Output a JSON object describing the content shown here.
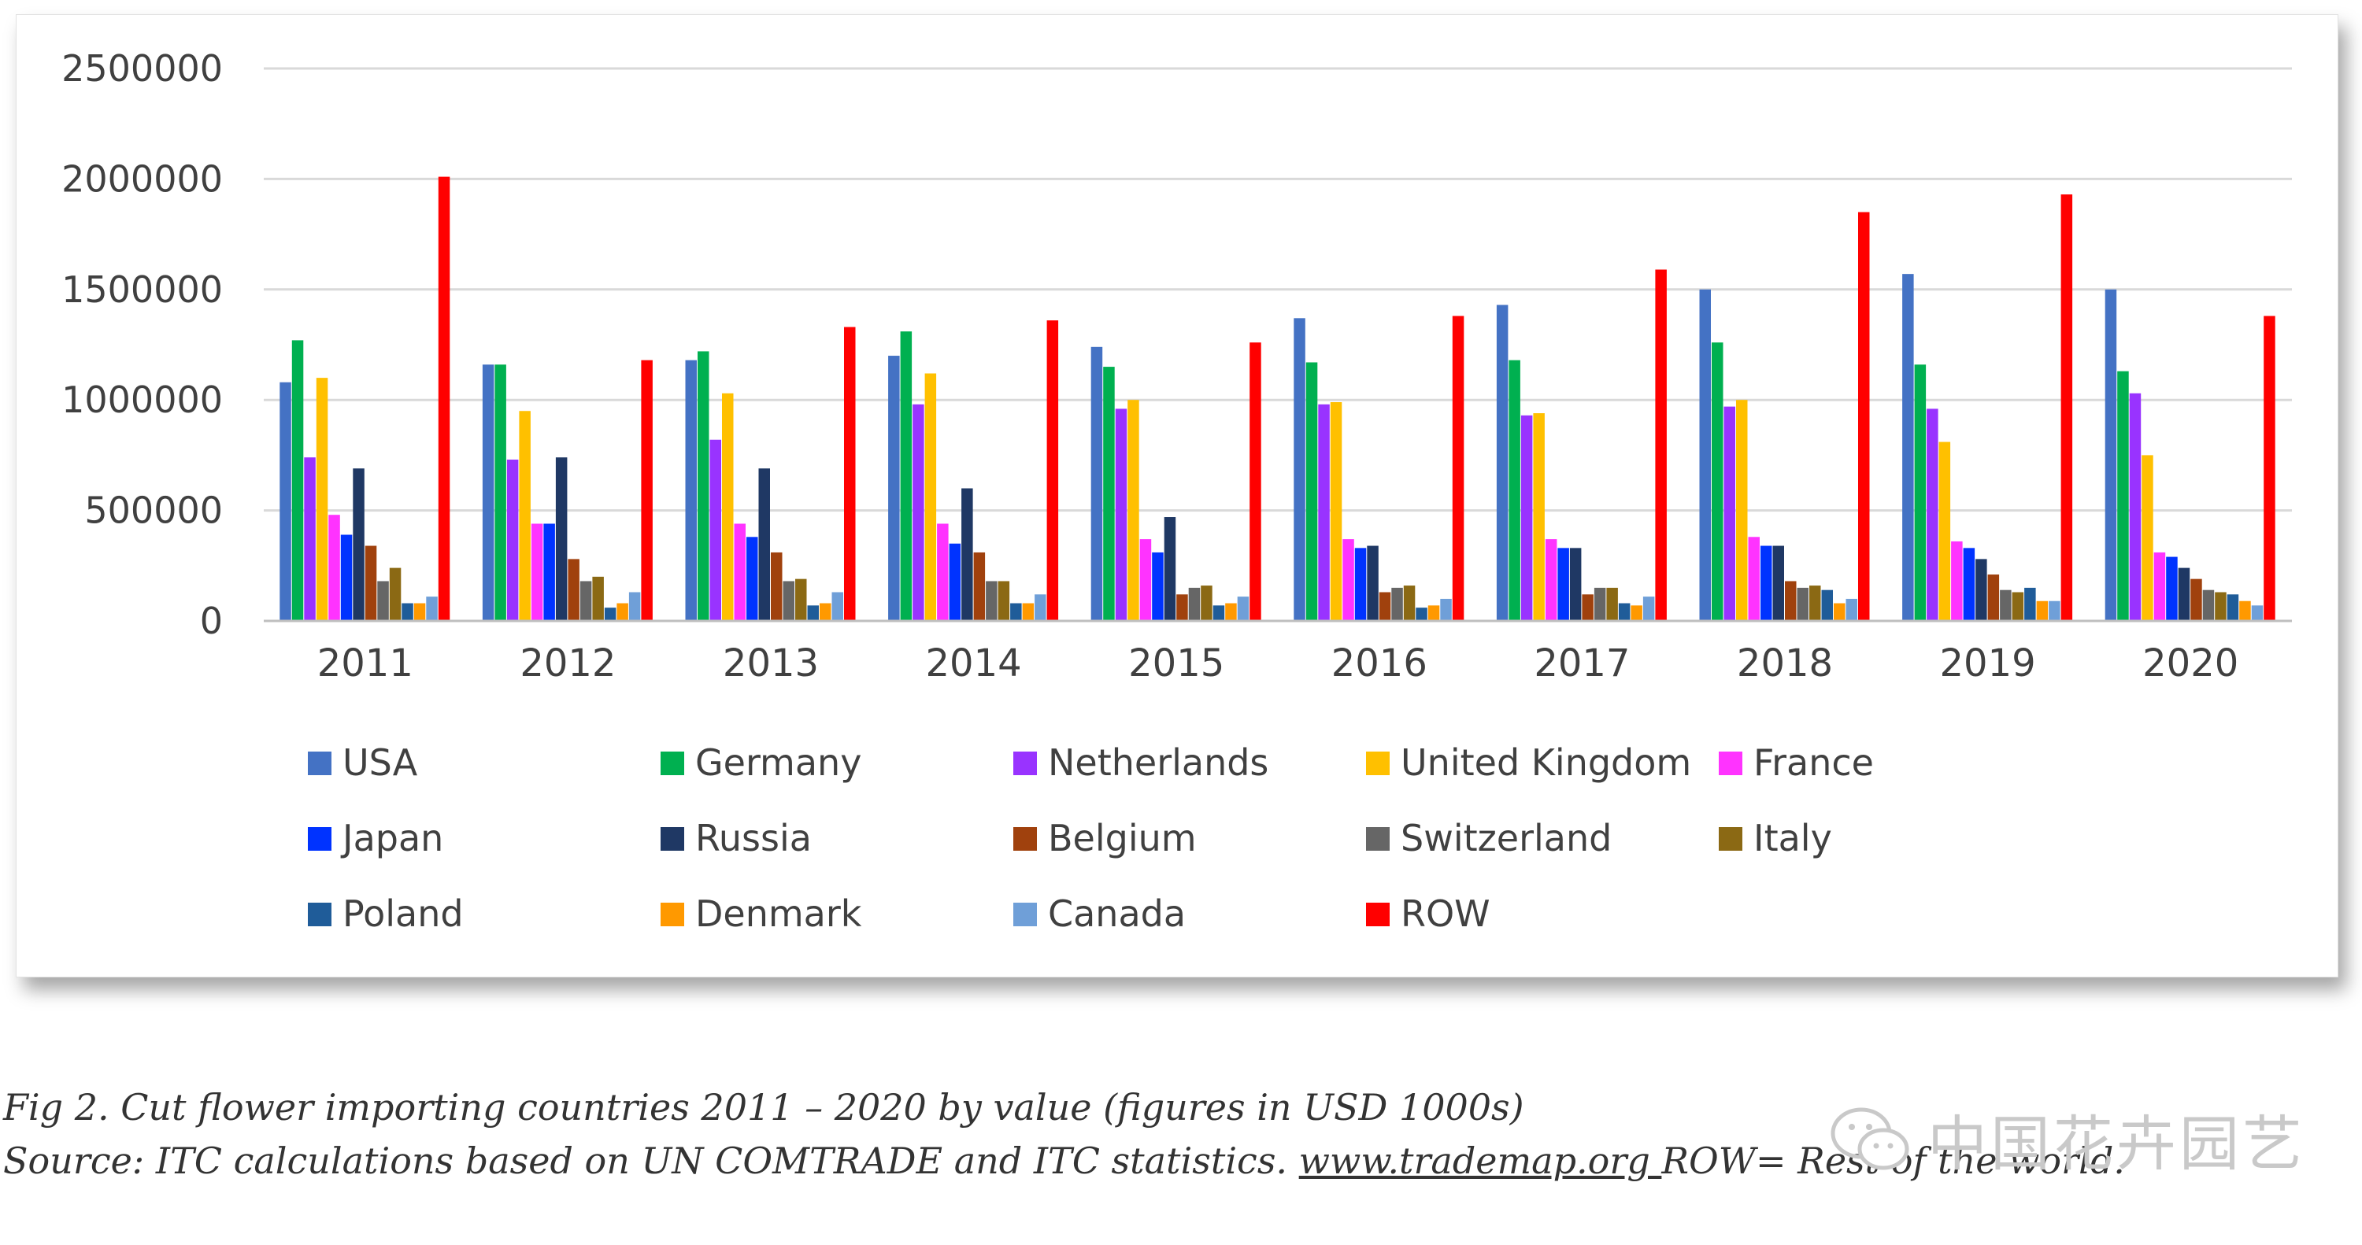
{
  "chart_data": {
    "type": "bar",
    "categories": [
      "2011",
      "2012",
      "2013",
      "2014",
      "2015",
      "2016",
      "2017",
      "2018",
      "2019",
      "2020"
    ],
    "ylim": [
      0,
      2500000
    ],
    "yticks": [
      0,
      500000,
      1000000,
      1500000,
      2000000,
      2500000
    ],
    "ytick_labels": [
      "0",
      "500000",
      "1000000",
      "1500000",
      "2000000",
      "2500000"
    ],
    "grid": true,
    "legend_position": "bottom",
    "series": [
      {
        "name": "USA",
        "color": "#4472C4",
        "values": [
          1080000,
          1160000,
          1180000,
          1200000,
          1240000,
          1370000,
          1430000,
          1500000,
          1570000,
          1500000
        ]
      },
      {
        "name": "Germany",
        "color": "#00B050",
        "values": [
          1270000,
          1160000,
          1220000,
          1310000,
          1150000,
          1170000,
          1180000,
          1260000,
          1160000,
          1130000
        ]
      },
      {
        "name": "Netherlands",
        "color": "#9933FF",
        "values": [
          740000,
          730000,
          820000,
          980000,
          960000,
          980000,
          930000,
          970000,
          960000,
          1030000
        ]
      },
      {
        "name": "United Kingdom",
        "color": "#FFC000",
        "values": [
          1100000,
          950000,
          1030000,
          1120000,
          1000000,
          990000,
          940000,
          1000000,
          810000,
          750000
        ]
      },
      {
        "name": "France",
        "color": "#FF33FF",
        "values": [
          480000,
          440000,
          440000,
          440000,
          370000,
          370000,
          370000,
          380000,
          360000,
          310000
        ]
      },
      {
        "name": "Japan",
        "color": "#0033FF",
        "values": [
          390000,
          440000,
          380000,
          350000,
          310000,
          330000,
          330000,
          340000,
          330000,
          290000
        ]
      },
      {
        "name": "Russia",
        "color": "#1F3864",
        "values": [
          690000,
          740000,
          690000,
          600000,
          470000,
          340000,
          330000,
          340000,
          280000,
          240000
        ]
      },
      {
        "name": "Belgium",
        "color": "#A0410D",
        "values": [
          340000,
          280000,
          310000,
          310000,
          120000,
          130000,
          120000,
          180000,
          210000,
          190000
        ]
      },
      {
        "name": "Switzerland",
        "color": "#666666",
        "values": [
          180000,
          180000,
          180000,
          180000,
          150000,
          150000,
          150000,
          150000,
          140000,
          140000
        ]
      },
      {
        "name": "Italy",
        "color": "#8B6914",
        "values": [
          240000,
          200000,
          190000,
          180000,
          160000,
          160000,
          150000,
          160000,
          130000,
          130000
        ]
      },
      {
        "name": "Poland",
        "color": "#1F5C99",
        "values": [
          80000,
          60000,
          70000,
          80000,
          70000,
          60000,
          80000,
          140000,
          150000,
          120000
        ]
      },
      {
        "name": "Denmark",
        "color": "#FF9900",
        "values": [
          80000,
          80000,
          80000,
          80000,
          80000,
          70000,
          70000,
          80000,
          90000,
          90000
        ]
      },
      {
        "name": "Canada",
        "color": "#6F9FD8",
        "values": [
          110000,
          130000,
          130000,
          120000,
          110000,
          100000,
          110000,
          100000,
          90000,
          70000
        ]
      },
      {
        "name": "ROW",
        "color": "#FF0000",
        "values": [
          2010000,
          1180000,
          1330000,
          1360000,
          1260000,
          1380000,
          1590000,
          1850000,
          1930000,
          1380000
        ]
      }
    ]
  },
  "caption": {
    "line1": "Fig 2. Cut flower importing countries 2011 – 2020 by value (figures in USD 1000s)",
    "line2_prefix": "Source: ITC calculations based on UN COMTRADE and ITC statistics. ",
    "link": "www.trademap.org ",
    "line2_suffix": "ROW= Rest of the world."
  },
  "watermark": {
    "text": "中国花卉园艺",
    "icon": "wechat-icon"
  }
}
